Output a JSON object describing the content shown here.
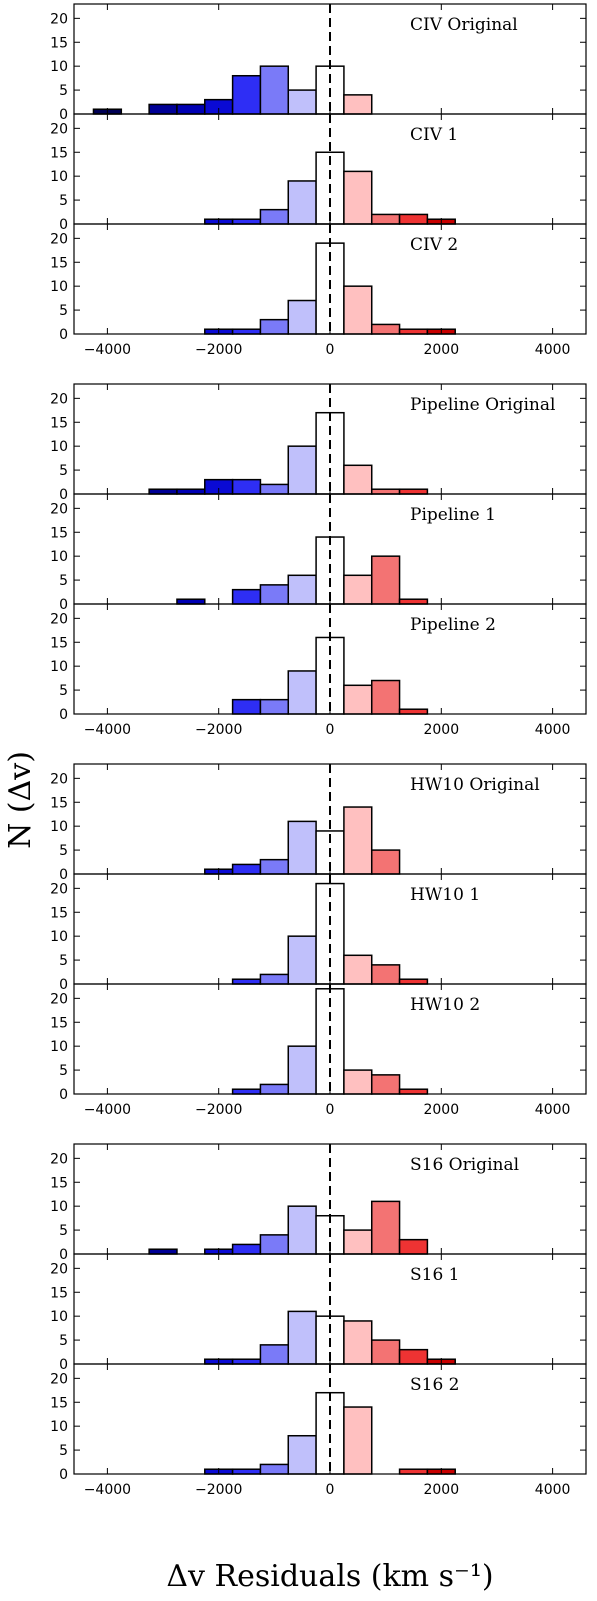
{
  "chart_data": {
    "type": "bar",
    "description_x_axis": "shared velocity-residual axis",
    "xlabel": "Δv Residuals (km s⁻¹)",
    "ylabel": "N (Δv)",
    "xlim": [
      -4600,
      4600
    ],
    "ylim": [
      0,
      23
    ],
    "xticks": [
      -4000,
      -2000,
      0,
      2000,
      4000
    ],
    "xtick_labels": [
      "−4000",
      "−2000",
      "0",
      "2000",
      "4000"
    ],
    "yticks": [
      0,
      5,
      10,
      15,
      20
    ],
    "bin_width": 500,
    "bin_centers": [
      -4000,
      -3500,
      -3000,
      -2500,
      -2000,
      -1500,
      -1000,
      -500,
      0,
      500,
      1000,
      1500,
      2000,
      2500,
      3000,
      3500,
      4000
    ],
    "bin_colors": [
      "#000055",
      "#00007a",
      "#000096",
      "#0000b4",
      "#0a0ad4",
      "#2e2ef5",
      "#7a7af8",
      "#c0c0fb",
      "#ffffff",
      "#ffc0c0",
      "#f37373",
      "#ee3333",
      "#c80000",
      "#a00000",
      "#800000",
      "#600000",
      "#400000"
    ],
    "groups": [
      {
        "panels": [
          {
            "title": "CIV Original",
            "values": [
              1,
              0,
              2,
              2,
              3,
              8,
              10,
              5,
              10,
              4,
              0,
              0,
              0,
              0,
              0,
              0,
              0
            ]
          },
          {
            "title": "CIV 1",
            "values": [
              0,
              0,
              0,
              0,
              1,
              1,
              3,
              9,
              15,
              11,
              2,
              2,
              1,
              0,
              0,
              0,
              0
            ]
          },
          {
            "title": "CIV 2",
            "values": [
              0,
              0,
              0,
              0,
              1,
              1,
              3,
              7,
              19,
              10,
              2,
              1,
              1,
              0,
              0,
              0,
              0
            ]
          }
        ]
      },
      {
        "panels": [
          {
            "title": "Pipeline Original",
            "values": [
              0,
              0,
              1,
              1,
              3,
              3,
              2,
              10,
              17,
              6,
              1,
              1,
              0,
              0,
              0,
              0,
              0
            ]
          },
          {
            "title": "Pipeline 1",
            "values": [
              0,
              0,
              0,
              1,
              0,
              3,
              4,
              6,
              14,
              6,
              10,
              1,
              0,
              0,
              0,
              0,
              0
            ]
          },
          {
            "title": "Pipeline 2",
            "values": [
              0,
              0,
              0,
              0,
              0,
              3,
              3,
              9,
              16,
              6,
              7,
              1,
              0,
              0,
              0,
              0,
              0
            ]
          }
        ]
      },
      {
        "panels": [
          {
            "title": "HW10 Original",
            "values": [
              0,
              0,
              0,
              0,
              1,
              2,
              3,
              11,
              9,
              14,
              5,
              0,
              0,
              0,
              0,
              0,
              0
            ]
          },
          {
            "title": "HW10 1",
            "values": [
              0,
              0,
              0,
              0,
              0,
              1,
              2,
              10,
              21,
              6,
              4,
              1,
              0,
              0,
              0,
              0,
              0
            ]
          },
          {
            "title": "HW10 2",
            "values": [
              0,
              0,
              0,
              0,
              0,
              1,
              2,
              10,
              22,
              5,
              4,
              1,
              0,
              0,
              0,
              0,
              0
            ]
          }
        ]
      },
      {
        "panels": [
          {
            "title": "S16 Original",
            "values": [
              0,
              0,
              1,
              0,
              1,
              2,
              4,
              10,
              8,
              5,
              11,
              3,
              0,
              0,
              0,
              0,
              0
            ]
          },
          {
            "title": "S16 1",
            "values": [
              0,
              0,
              0,
              0,
              1,
              1,
              4,
              11,
              10,
              9,
              5,
              3,
              1,
              0,
              0,
              0,
              0
            ]
          },
          {
            "title": "S16 2",
            "values": [
              0,
              0,
              0,
              0,
              1,
              1,
              2,
              8,
              17,
              14,
              0,
              1,
              1,
              0,
              0,
              0,
              0
            ]
          }
        ]
      }
    ],
    "zero_line": "dashed vertical at 0",
    "grid": false,
    "legend": "none"
  }
}
